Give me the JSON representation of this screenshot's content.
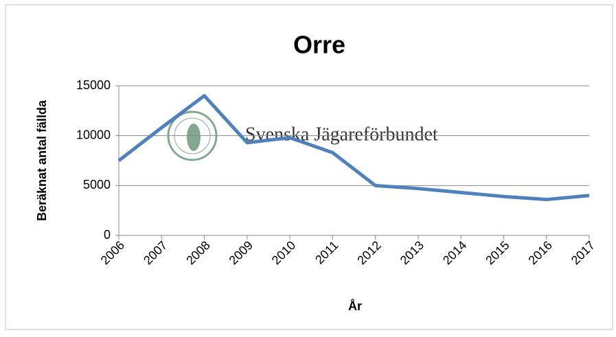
{
  "chart_data": {
    "type": "line",
    "title": "Orre",
    "x_label": "År",
    "y_label": "Beräknat antal fällda",
    "annotation": "Svenska Jägareförbundet",
    "categories": [
      "2006",
      "2007",
      "2008",
      "2009",
      "2010",
      "2011",
      "2012",
      "2013",
      "2014",
      "2015",
      "2016",
      "2017"
    ],
    "series": [
      {
        "name": "Orre",
        "color": "#4f81bd",
        "values": [
          7500,
          10800,
          14000,
          9300,
          9800,
          8300,
          5000,
          4700,
          4300,
          3900,
          3600,
          4000
        ]
      }
    ],
    "ylim": [
      0,
      15000
    ],
    "yticks": [
      0,
      5000,
      10000,
      15000
    ],
    "grid": true,
    "legend": false
  }
}
